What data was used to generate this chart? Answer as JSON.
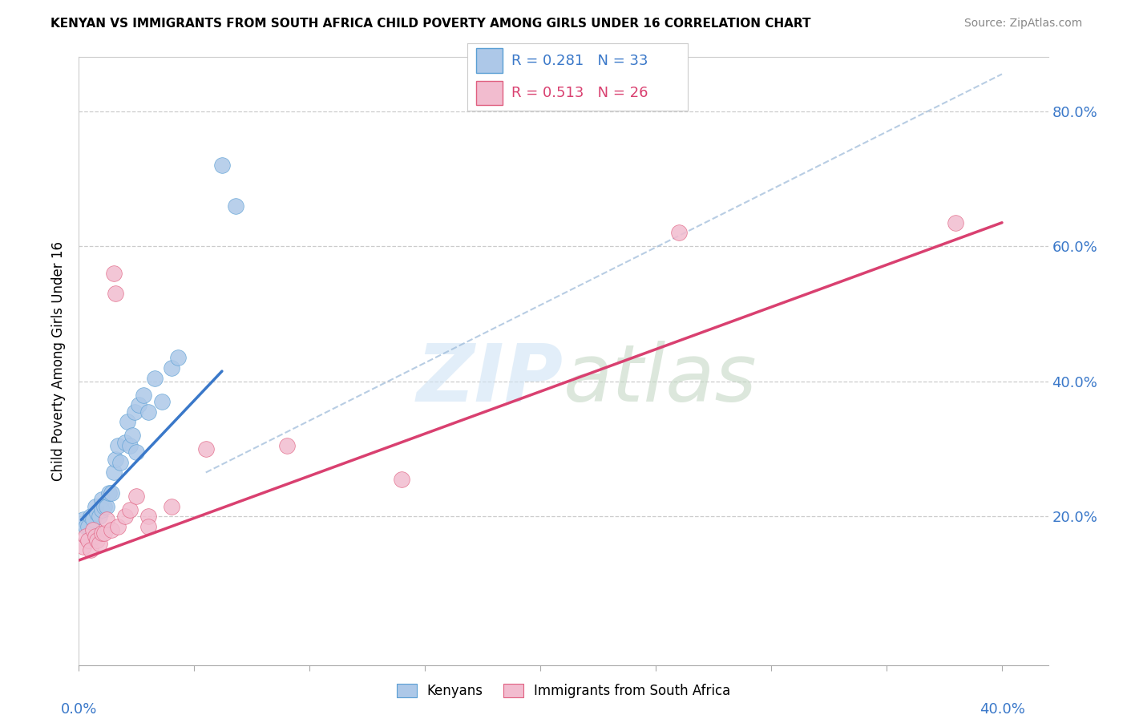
{
  "title": "KENYAN VS IMMIGRANTS FROM SOUTH AFRICA CHILD POVERTY AMONG GIRLS UNDER 16 CORRELATION CHART",
  "source": "Source: ZipAtlas.com",
  "ylabel": "Child Poverty Among Girls Under 16",
  "ytick_labels": [
    "20.0%",
    "40.0%",
    "60.0%",
    "80.0%"
  ],
  "ytick_vals": [
    0.2,
    0.4,
    0.6,
    0.8
  ],
  "xrange": [
    0.0,
    0.42
  ],
  "yrange": [
    -0.02,
    0.88
  ],
  "blue_scatter_color": "#adc8e8",
  "blue_edge_color": "#5a9fd4",
  "pink_scatter_color": "#f2bccf",
  "pink_edge_color": "#e06080",
  "blue_line_color": "#3a78c9",
  "pink_line_color": "#d94070",
  "dash_color": "#9ab8d8",
  "watermark_zip_color": "#dce8f5",
  "watermark_atlas_color": "#c8dac8",
  "kenyan_scatter": [
    [
      0.002,
      0.195
    ],
    [
      0.003,
      0.185
    ],
    [
      0.004,
      0.185
    ],
    [
      0.005,
      0.2
    ],
    [
      0.006,
      0.195
    ],
    [
      0.007,
      0.215
    ],
    [
      0.008,
      0.205
    ],
    [
      0.009,
      0.2
    ],
    [
      0.01,
      0.225
    ],
    [
      0.01,
      0.21
    ],
    [
      0.011,
      0.215
    ],
    [
      0.012,
      0.215
    ],
    [
      0.013,
      0.235
    ],
    [
      0.014,
      0.235
    ],
    [
      0.015,
      0.265
    ],
    [
      0.016,
      0.285
    ],
    [
      0.017,
      0.305
    ],
    [
      0.018,
      0.28
    ],
    [
      0.02,
      0.31
    ],
    [
      0.021,
      0.34
    ],
    [
      0.022,
      0.305
    ],
    [
      0.023,
      0.32
    ],
    [
      0.024,
      0.355
    ],
    [
      0.025,
      0.295
    ],
    [
      0.026,
      0.365
    ],
    [
      0.028,
      0.38
    ],
    [
      0.03,
      0.355
    ],
    [
      0.033,
      0.405
    ],
    [
      0.036,
      0.37
    ],
    [
      0.04,
      0.42
    ],
    [
      0.043,
      0.435
    ],
    [
      0.062,
      0.72
    ],
    [
      0.068,
      0.66
    ]
  ],
  "sa_scatter": [
    [
      0.002,
      0.155
    ],
    [
      0.003,
      0.17
    ],
    [
      0.004,
      0.165
    ],
    [
      0.005,
      0.15
    ],
    [
      0.006,
      0.18
    ],
    [
      0.007,
      0.17
    ],
    [
      0.008,
      0.165
    ],
    [
      0.009,
      0.16
    ],
    [
      0.01,
      0.175
    ],
    [
      0.011,
      0.175
    ],
    [
      0.012,
      0.195
    ],
    [
      0.014,
      0.18
    ],
    [
      0.015,
      0.56
    ],
    [
      0.016,
      0.53
    ],
    [
      0.017,
      0.185
    ],
    [
      0.02,
      0.2
    ],
    [
      0.022,
      0.21
    ],
    [
      0.025,
      0.23
    ],
    [
      0.03,
      0.2
    ],
    [
      0.03,
      0.185
    ],
    [
      0.04,
      0.215
    ],
    [
      0.055,
      0.3
    ],
    [
      0.09,
      0.305
    ],
    [
      0.14,
      0.255
    ],
    [
      0.26,
      0.62
    ],
    [
      0.38,
      0.635
    ]
  ],
  "blue_line_x": [
    0.001,
    0.062
  ],
  "blue_line_y": [
    0.195,
    0.415
  ],
  "pink_line_x": [
    0.0,
    0.4
  ],
  "pink_line_y": [
    0.135,
    0.635
  ],
  "dash_line_x": [
    0.055,
    0.4
  ],
  "dash_line_y": [
    0.265,
    0.855
  ]
}
